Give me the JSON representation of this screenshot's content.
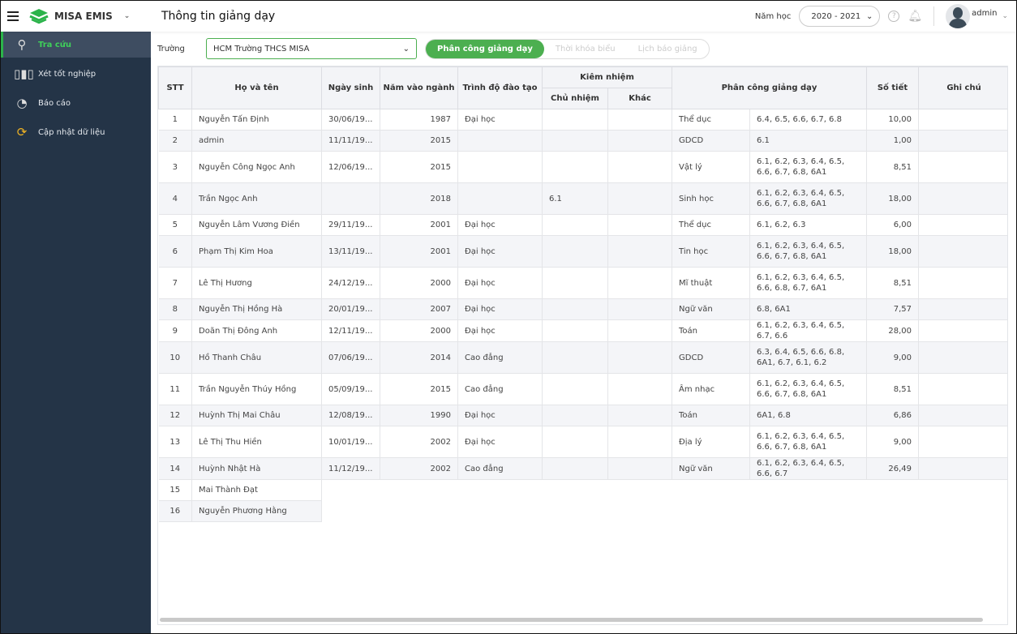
{
  "header": {
    "app": "MISA EMIS",
    "title": "Thông tin giảng dạy",
    "year_label": "Năm học",
    "year": "2020 - 2021",
    "user": "admin"
  },
  "sidebar": {
    "items": [
      {
        "label": "Tra cứu",
        "icon": "search-user-icon"
      },
      {
        "label": "Xét tốt nghiệp",
        "icon": "bar-chart-icon"
      },
      {
        "label": "Báo cáo",
        "icon": "pie-chart-icon"
      },
      {
        "label": "Cập nhật dữ liệu",
        "icon": "sync-icon"
      }
    ]
  },
  "filter": {
    "school_label": "Trường",
    "school": "HCM Trường THCS MISA"
  },
  "tabs": [
    "Phân công giảng dạy",
    "Thời khóa biểu",
    "Lịch báo giảng"
  ],
  "colors": {
    "accent": "#4caf50",
    "sidebar": "#243447"
  },
  "table": {
    "headers": {
      "stt": "STT",
      "name": "Họ và tên",
      "dob": "Ngày sinh",
      "year": "Năm vào ngành",
      "degree": "Trình độ đào tạo",
      "kiem": "Kiêm nhiệm",
      "chu": "Chủ nhiệm",
      "khac": "Khác",
      "pc": "Phân công giảng dạy",
      "tiet": "Số tiết",
      "note": "Ghi chú"
    },
    "rows": [
      {
        "stt": "1",
        "name": "Nguyễn Tấn Định",
        "dob": "30/06/19...",
        "year": "1987",
        "degree": "Đại học",
        "chu": "",
        "khac": "",
        "subject": "Thể dục",
        "classes": "6.4, 6.5, 6.6, 6.7, 6.8",
        "tiet": "10,00"
      },
      {
        "stt": "2",
        "name": "admin",
        "dob": "11/11/19...",
        "year": "2015",
        "degree": "",
        "chu": "",
        "khac": "",
        "subject": "GDCD",
        "classes": "6.1",
        "tiet": "1,00"
      },
      {
        "stt": "3",
        "name": "Nguyễn Công Ngọc Anh",
        "dob": "12/06/19...",
        "year": "2015",
        "degree": "",
        "chu": "",
        "khac": "",
        "subject": "Vật lý",
        "classes": "6.1, 6.2, 6.3, 6.4, 6.5, 6.6, 6.7, 6.8, 6A1",
        "tiet": "8,51"
      },
      {
        "stt": "4",
        "name": "Trần Ngọc Anh",
        "dob": "",
        "year": "2018",
        "degree": "",
        "chu": "6.1",
        "khac": "",
        "subject": "Sinh học",
        "classes": "6.1, 6.2, 6.3, 6.4, 6.5, 6.6, 6.7, 6.8, 6A1",
        "tiet": "18,00"
      },
      {
        "stt": "5",
        "name": "Nguyễn Lâm Vương Điền",
        "dob": "29/11/19...",
        "year": "2001",
        "degree": "Đại học",
        "chu": "",
        "khac": "",
        "subject": "Thể dục",
        "classes": "6.1, 6.2, 6.3",
        "tiet": "6,00"
      },
      {
        "stt": "6",
        "name": "Phạm Thị Kim Hoa",
        "dob": "13/11/19...",
        "year": "2001",
        "degree": "Đại học",
        "chu": "",
        "khac": "",
        "subject": "Tin học",
        "classes": "6.1, 6.2, 6.3, 6.4, 6.5, 6.6, 6.7, 6.8, 6A1",
        "tiet": "18,00"
      },
      {
        "stt": "7",
        "name": "Lê Thị Hương",
        "dob": "24/12/19...",
        "year": "2000",
        "degree": "Đại học",
        "chu": "",
        "khac": "",
        "subject": "Mĩ thuật",
        "classes": "6.1, 6.2, 6.3, 6.4, 6.5, 6.6, 6.8, 6.7, 6A1",
        "tiet": "8,51"
      },
      {
        "stt": "8",
        "name": "Nguyễn Thị Hồng Hà",
        "dob": "20/01/19...",
        "year": "2007",
        "degree": "Đại học",
        "chu": "",
        "khac": "",
        "subject": "Ngữ văn",
        "classes": "6.8, 6A1",
        "tiet": "7,57"
      },
      {
        "stt": "9",
        "name": "Doãn Thị Đông Anh",
        "dob": "12/11/19...",
        "year": "2000",
        "degree": "Đại học",
        "chu": "",
        "khac": "",
        "subject": "Toán",
        "classes": "6.1, 6.2, 6.3, 6.4, 6.5, 6.7, 6.6",
        "tiet": "28,00"
      },
      {
        "stt": "10",
        "name": "Hồ Thanh Châu",
        "dob": "07/06/19...",
        "year": "2014",
        "degree": "Cao đẳng",
        "chu": "",
        "khac": "",
        "subject": "GDCD",
        "classes": "6.3, 6.4, 6.5, 6.6, 6.8, 6A1, 6.7, 6.1, 6.2",
        "tiet": "9,00"
      },
      {
        "stt": "11",
        "name": "Trần Nguyễn Thúy Hồng",
        "dob": "05/09/19...",
        "year": "2015",
        "degree": "Cao đẳng",
        "chu": "",
        "khac": "",
        "subject": "Âm nhạc",
        "classes": "6.1, 6.2, 6.3, 6.4, 6.5, 6.6, 6.7, 6.8, 6A1",
        "tiet": "8,51"
      },
      {
        "stt": "12",
        "name": "Huỳnh Thị Mai Châu",
        "dob": "12/08/19...",
        "year": "1990",
        "degree": "Đại học",
        "chu": "",
        "khac": "",
        "subject": "Toán",
        "classes": "6A1, 6.8",
        "tiet": "6,86"
      },
      {
        "stt": "13",
        "name": "Lê Thị Thu Hiền",
        "dob": "10/01/19...",
        "year": "2002",
        "degree": "Đại học",
        "chu": "",
        "khac": "",
        "subject": "Địa lý",
        "classes": "6.1, 6.2, 6.3, 6.4, 6.5, 6.6, 6.7, 6.8, 6A1",
        "tiet": "9,00"
      },
      {
        "stt": "14",
        "name": "Huỳnh Nhật Hà",
        "dob": "11/12/19...",
        "year": "2002",
        "degree": "Cao đẳng",
        "chu": "",
        "khac": "",
        "subject": "Ngữ văn",
        "classes": "6.1, 6.2, 6.3, 6.4, 6.5, 6.6, 6.7",
        "tiet": "26,49"
      },
      {
        "stt": "15",
        "name": "Mai Thành Đạt"
      },
      {
        "stt": "16",
        "name": "Nguyễn Phương Hằng"
      }
    ]
  }
}
